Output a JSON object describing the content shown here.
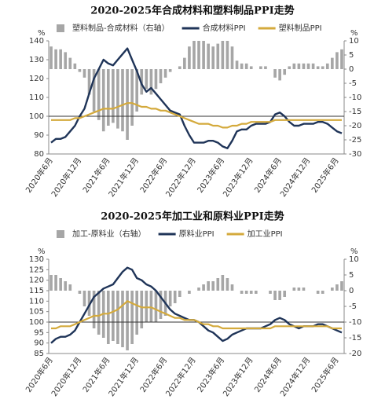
{
  "chart_data": [
    {
      "type": "combo",
      "title": "2020-2025年合成材料和塑料制品PPI走势",
      "y_unit": "%",
      "y2_unit": "%",
      "categories": [
        "2020年6月",
        null,
        null,
        null,
        null,
        null,
        "2020年12月",
        null,
        null,
        null,
        null,
        null,
        "2021年6月",
        null,
        null,
        null,
        null,
        null,
        "2021年12月",
        null,
        null,
        null,
        null,
        null,
        "2022年6月",
        null,
        null,
        null,
        null,
        null,
        "2022年12月",
        null,
        null,
        null,
        null,
        null,
        "2023年6月",
        null,
        null,
        null,
        null,
        null,
        "2023年12月",
        null,
        null,
        null,
        null,
        null,
        "2024年6月",
        null,
        null,
        null,
        null,
        null,
        "2024年12月",
        null,
        null,
        null,
        null,
        null,
        "2025年6月",
        null
      ],
      "ylim": [
        80,
        140
      ],
      "yticks": [
        80,
        90,
        100,
        110,
        120,
        130,
        140
      ],
      "y2lim": [
        -30,
        10
      ],
      "y2ticks": [
        -30,
        -25,
        -20,
        -15,
        -10,
        -5,
        0,
        5,
        10
      ],
      "reference_line": 100,
      "series": [
        {
          "name": "塑料制品-合成材料（右轴）",
          "kind": "bar",
          "axis": "y2",
          "color": "#a6a6a6",
          "values": [
            8,
            7,
            7,
            6,
            4,
            2,
            -1,
            -3,
            -9,
            -15,
            -18,
            -22,
            -20,
            -19,
            -21,
            -22,
            -25,
            -20,
            -15,
            -9,
            -7,
            -9,
            -7,
            -5,
            -3,
            -1,
            0,
            1,
            4,
            8,
            10,
            10,
            10,
            9,
            8,
            9,
            10,
            10,
            8,
            3,
            2,
            2,
            1,
            0,
            1,
            1,
            0,
            -3,
            -4,
            -2,
            1,
            2,
            2,
            2,
            2,
            2,
            1,
            1,
            2,
            4,
            6,
            7
          ]
        },
        {
          "name": "合成材料PPI",
          "kind": "line",
          "color": "#1f3458",
          "values": [
            86,
            88,
            88,
            89,
            92,
            95,
            100,
            104,
            112,
            120,
            125,
            130,
            128,
            127,
            130,
            133,
            136,
            130,
            124,
            117,
            113,
            115,
            112,
            109,
            106,
            103,
            102,
            101,
            95,
            90,
            86,
            86,
            86,
            87,
            87,
            86,
            84,
            83,
            87,
            92,
            93,
            93,
            95,
            96,
            96,
            96,
            97,
            101,
            102,
            100,
            97,
            95,
            95,
            96,
            96,
            96,
            97,
            97,
            96,
            94,
            92,
            91
          ]
        },
        {
          "name": "塑料制品PPI",
          "kind": "line",
          "color": "#d4aa3c",
          "values": [
            98,
            98,
            98,
            98,
            98,
            99,
            99,
            100,
            101,
            102,
            103,
            104,
            104,
            104,
            105,
            106,
            107,
            107,
            106,
            105,
            105,
            104,
            104,
            103,
            103,
            102,
            101,
            100,
            99,
            98,
            97,
            96,
            96,
            96,
            95,
            95,
            94,
            94,
            95,
            95,
            96,
            96,
            97,
            97,
            97,
            97,
            97,
            98,
            98,
            98,
            98,
            98,
            98,
            98,
            98,
            98,
            98,
            98,
            98,
            98,
            98,
            98
          ]
        }
      ]
    },
    {
      "type": "combo",
      "title": "2020-2025年加工业和原料业PPI走势",
      "y_unit": "%",
      "y2_unit": "%",
      "categories": [
        "2020年6月",
        null,
        null,
        null,
        null,
        null,
        "2020年12月",
        null,
        null,
        null,
        null,
        null,
        "2021年6月",
        null,
        null,
        null,
        null,
        null,
        "2021年12月",
        null,
        null,
        null,
        null,
        null,
        "2022年6月",
        null,
        null,
        null,
        null,
        null,
        "2022年12月",
        null,
        null,
        null,
        null,
        null,
        "2023年6月",
        null,
        null,
        null,
        null,
        null,
        "2023年12月",
        null,
        null,
        null,
        null,
        null,
        "2024年6月",
        null,
        null,
        null,
        null,
        null,
        "2024年12月",
        null,
        null,
        null,
        null,
        null,
        "2025年6月",
        null
      ],
      "ylim": [
        85,
        130
      ],
      "yticks": [
        85,
        90,
        95,
        100,
        105,
        110,
        115,
        120,
        125,
        130
      ],
      "y2lim": [
        -20,
        10
      ],
      "y2ticks": [
        -20,
        -15,
        -10,
        -5,
        0,
        5,
        10
      ],
      "reference_line": 100,
      "series": [
        {
          "name": "加工-原料业（右轴）",
          "kind": "bar",
          "axis": "y2",
          "color": "#a6a6a6",
          "values": [
            5,
            5,
            4,
            3,
            2,
            0,
            -1,
            -5,
            -8,
            -12,
            -14,
            -15,
            -17,
            -16,
            -17,
            -18,
            -19,
            -17,
            -14,
            -12,
            -10,
            -10,
            -10,
            -9,
            -8,
            -5,
            -4,
            -2,
            0,
            -1,
            0,
            1,
            2,
            3,
            3,
            4,
            5,
            4,
            2,
            0,
            -1,
            -1,
            -1,
            -1,
            0,
            0,
            -1,
            -3,
            -3,
            -2,
            0,
            1,
            1,
            1,
            0,
            0,
            -1,
            -1,
            0,
            1,
            2,
            3
          ]
        },
        {
          "name": "原料业PPI",
          "kind": "line",
          "color": "#1f3458",
          "values": [
            90,
            92,
            93,
            93,
            94,
            96,
            100,
            104,
            108,
            112,
            114,
            116,
            117,
            118,
            121,
            124,
            126,
            125,
            121,
            120,
            118,
            117,
            115,
            112,
            109,
            106,
            104,
            103,
            102,
            101,
            101,
            100,
            98,
            96,
            95,
            93,
            91,
            92,
            94,
            95,
            96,
            97,
            97,
            97,
            97,
            98,
            99,
            101,
            102,
            101,
            99,
            98,
            97,
            98,
            98,
            98,
            99,
            99,
            98,
            97,
            96,
            95
          ]
        },
        {
          "name": "加工业PPI",
          "kind": "line",
          "color": "#d4aa3c",
          "values": [
            97,
            97,
            98,
            98,
            98,
            99,
            100,
            101,
            102,
            103,
            103,
            104,
            104,
            105,
            106,
            108,
            110,
            109,
            108,
            107,
            107,
            107,
            106,
            105,
            104,
            103,
            102,
            102,
            101,
            101,
            101,
            100,
            99,
            99,
            98,
            98,
            97,
            97,
            97,
            97,
            97,
            97,
            97,
            97,
            97,
            97,
            97,
            98,
            98,
            98,
            98,
            98,
            98,
            98,
            98,
            98,
            98,
            98,
            98,
            97,
            97,
            97
          ]
        }
      ]
    }
  ]
}
